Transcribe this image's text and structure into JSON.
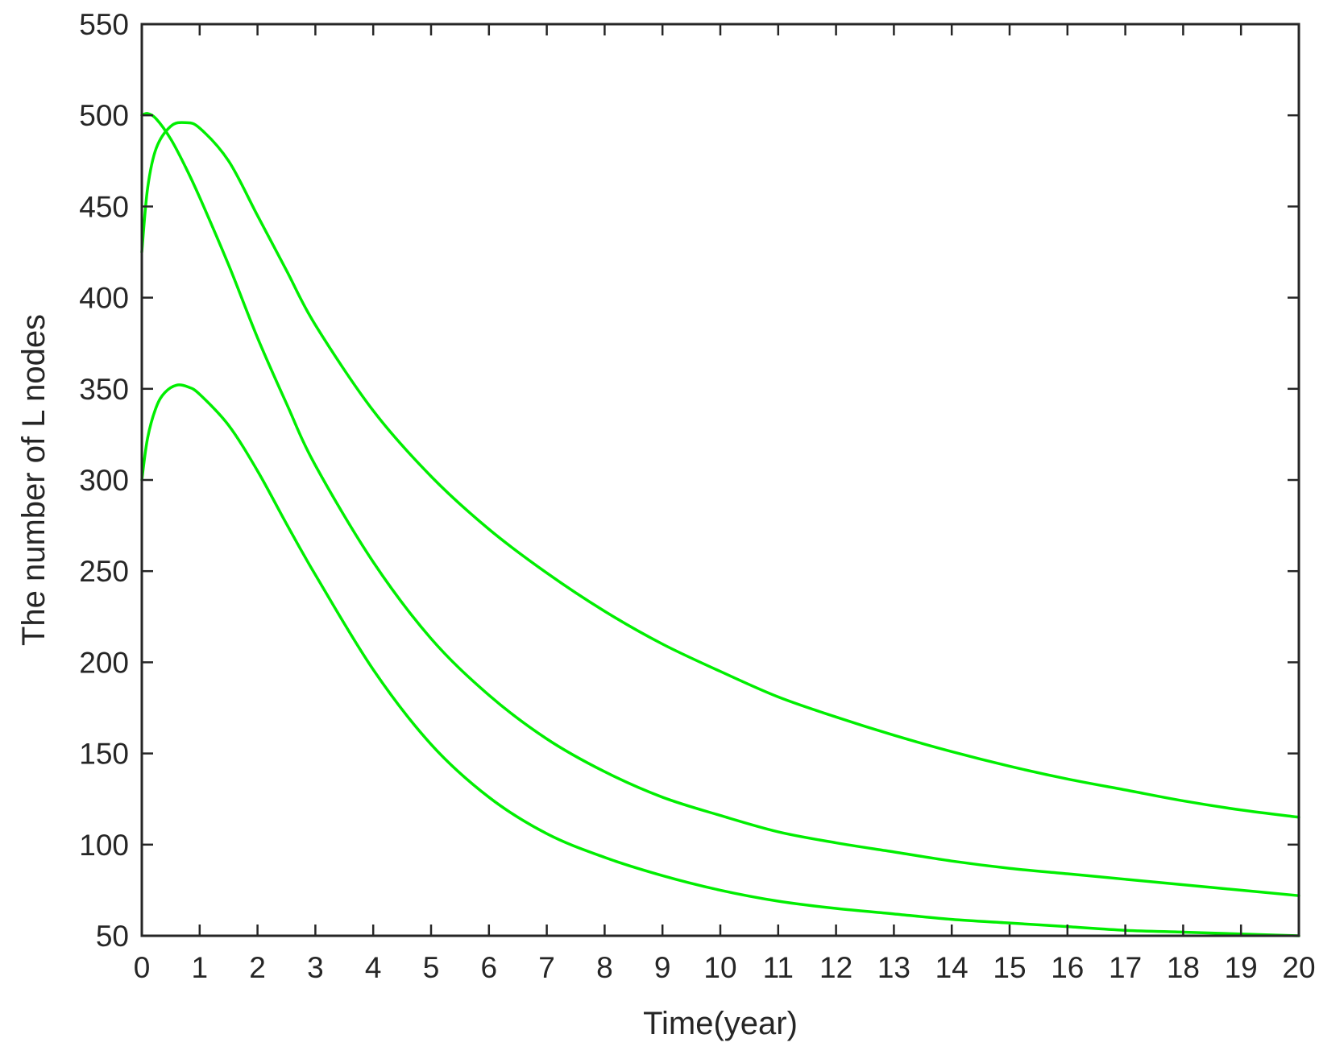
{
  "chart_data": {
    "type": "line",
    "title": "",
    "xlabel": "Time(year)",
    "ylabel": "The number of L nodes",
    "xlim": [
      0,
      20
    ],
    "ylim": [
      50,
      550
    ],
    "xticks": [
      0,
      1,
      2,
      3,
      4,
      5,
      6,
      7,
      8,
      9,
      10,
      11,
      12,
      13,
      14,
      15,
      16,
      17,
      18,
      19,
      20
    ],
    "yticks": [
      50,
      100,
      150,
      200,
      250,
      300,
      350,
      400,
      450,
      500,
      550
    ],
    "grid": false,
    "legend": "none",
    "line_color": "#00ee00",
    "series": [
      {
        "x": [
          0,
          0.1,
          0.25,
          0.5,
          0.75,
          1,
          1.5,
          2,
          2.5,
          3,
          4,
          5,
          6,
          7,
          8,
          9,
          10,
          11,
          12,
          13,
          14,
          15,
          16,
          17,
          18,
          19,
          20
        ],
        "values": [
          425,
          460,
          482,
          494,
          496,
          493,
          475,
          445,
          415,
          385,
          338,
          302,
          273,
          249,
          228,
          210,
          195,
          181,
          170,
          160,
          151,
          143,
          136,
          130,
          124,
          119,
          115
        ]
      },
      {
        "x": [
          0,
          0.1,
          0.25,
          0.5,
          0.75,
          1,
          1.5,
          2,
          2.5,
          3,
          4,
          5,
          6,
          7,
          8,
          9,
          10,
          11,
          12,
          13,
          14,
          15,
          16,
          17,
          18,
          19,
          20
        ],
        "values": [
          500,
          501,
          498,
          487,
          472,
          455,
          418,
          378,
          342,
          308,
          255,
          213,
          182,
          158,
          140,
          126,
          116,
          107,
          101,
          96,
          91,
          87,
          84,
          81,
          78,
          75,
          72
        ]
      },
      {
        "x": [
          0,
          0.1,
          0.25,
          0.4,
          0.6,
          0.8,
          1,
          1.5,
          2,
          2.5,
          3,
          4,
          5,
          6,
          7,
          8,
          9,
          10,
          11,
          12,
          13,
          14,
          15,
          16,
          17,
          18,
          19,
          20
        ],
        "values": [
          300,
          323,
          340,
          348,
          352,
          351,
          347,
          330,
          305,
          276,
          248,
          196,
          155,
          126,
          106,
          93,
          83,
          75,
          69,
          65,
          62,
          59,
          57,
          55,
          53,
          52,
          51,
          50
        ]
      }
    ]
  }
}
